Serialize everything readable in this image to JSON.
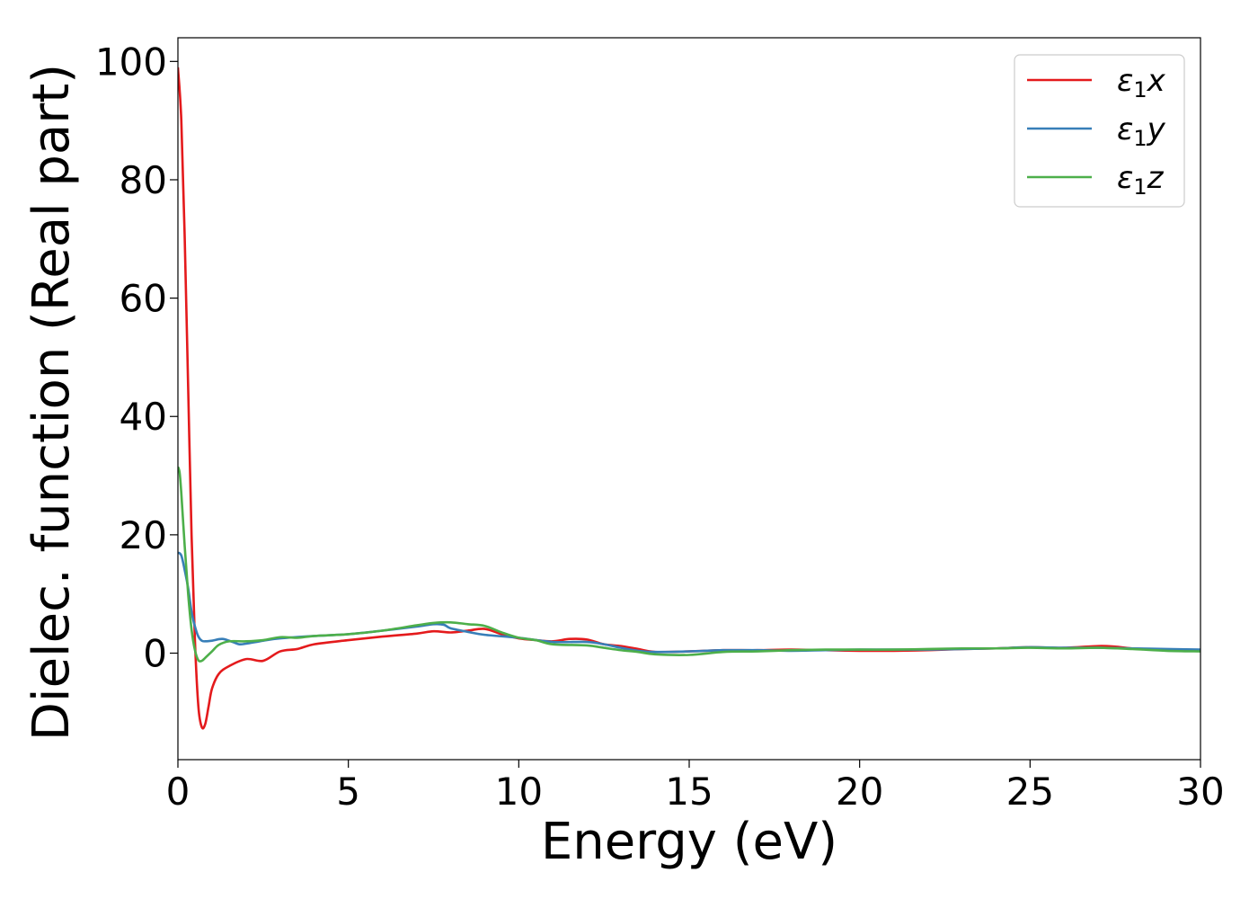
{
  "chart_data": {
    "type": "line",
    "xlabel": "Energy (eV)",
    "ylabel": "Dielec. function (Real part)",
    "xlim": [
      0,
      30
    ],
    "ylim": [
      -18,
      104
    ],
    "xticks": [
      0,
      5,
      10,
      15,
      20,
      25,
      30
    ],
    "xtick_labels": [
      "0",
      "5",
      "10",
      "15",
      "20",
      "25",
      "30"
    ],
    "yticks": [
      0,
      20,
      40,
      60,
      80,
      100
    ],
    "ytick_labels": [
      "0",
      "20",
      "40",
      "60",
      "80",
      "100"
    ],
    "grid": false,
    "legend_position": "top-right",
    "series": [
      {
        "name": "ε₁x",
        "legend": {
          "base": "ε",
          "sub": "1",
          "var": "x"
        },
        "color": "#e41a1c",
        "points": [
          [
            0.0,
            99
          ],
          [
            0.1,
            90
          ],
          [
            0.2,
            70
          ],
          [
            0.3,
            45
          ],
          [
            0.4,
            20
          ],
          [
            0.5,
            2
          ],
          [
            0.6,
            -9
          ],
          [
            0.7,
            -12.5
          ],
          [
            0.8,
            -12
          ],
          [
            0.9,
            -9
          ],
          [
            1.0,
            -6
          ],
          [
            1.2,
            -3.5
          ],
          [
            1.5,
            -2.2
          ],
          [
            2.0,
            -1
          ],
          [
            2.5,
            -1.3
          ],
          [
            3.0,
            0.3
          ],
          [
            3.5,
            0.7
          ],
          [
            4.0,
            1.5
          ],
          [
            5.0,
            2.2
          ],
          [
            6.0,
            2.8
          ],
          [
            7.0,
            3.3
          ],
          [
            7.5,
            3.7
          ],
          [
            8.0,
            3.5
          ],
          [
            8.5,
            3.8
          ],
          [
            9.0,
            4.1
          ],
          [
            9.5,
            3.2
          ],
          [
            10.0,
            2.5
          ],
          [
            10.5,
            2.2
          ],
          [
            11.0,
            2.0
          ],
          [
            11.5,
            2.4
          ],
          [
            12.0,
            2.3
          ],
          [
            12.5,
            1.5
          ],
          [
            13.0,
            1.2
          ],
          [
            13.5,
            0.7
          ],
          [
            14.0,
            0.2
          ],
          [
            15.0,
            0.3
          ],
          [
            16.0,
            0.5
          ],
          [
            17.0,
            0.5
          ],
          [
            18.0,
            0.6
          ],
          [
            19.0,
            0.5
          ],
          [
            20.0,
            0.4
          ],
          [
            21.0,
            0.4
          ],
          [
            22.0,
            0.5
          ],
          [
            23.0,
            0.7
          ],
          [
            24.0,
            0.8
          ],
          [
            25.0,
            1.0
          ],
          [
            26.0,
            0.9
          ],
          [
            27.0,
            1.2
          ],
          [
            27.5,
            1.1
          ],
          [
            28.0,
            0.8
          ],
          [
            29.0,
            0.6
          ],
          [
            30.0,
            0.5
          ]
        ]
      },
      {
        "name": "ε₁y",
        "legend": {
          "base": "ε",
          "sub": "1",
          "var": "y"
        },
        "color": "#377eb8",
        "points": [
          [
            0.0,
            17
          ],
          [
            0.1,
            16.5
          ],
          [
            0.2,
            14
          ],
          [
            0.3,
            11
          ],
          [
            0.4,
            7
          ],
          [
            0.5,
            4.5
          ],
          [
            0.6,
            2.8
          ],
          [
            0.7,
            2.1
          ],
          [
            0.8,
            2.0
          ],
          [
            1.0,
            2.1
          ],
          [
            1.3,
            2.4
          ],
          [
            1.6,
            1.9
          ],
          [
            1.8,
            1.5
          ],
          [
            2.0,
            1.6
          ],
          [
            2.5,
            2.1
          ],
          [
            3.0,
            2.5
          ],
          [
            4.0,
            2.9
          ],
          [
            5.0,
            3.2
          ],
          [
            6.0,
            3.8
          ],
          [
            7.0,
            4.5
          ],
          [
            7.5,
            4.9
          ],
          [
            7.8,
            4.8
          ],
          [
            8.0,
            4.2
          ],
          [
            8.5,
            3.6
          ],
          [
            9.0,
            3.1
          ],
          [
            10.0,
            2.6
          ],
          [
            11.0,
            1.9
          ],
          [
            12.0,
            1.9
          ],
          [
            12.5,
            1.5
          ],
          [
            13.0,
            0.9
          ],
          [
            13.5,
            0.4
          ],
          [
            14.0,
            0.2
          ],
          [
            15.0,
            0.3
          ],
          [
            16.0,
            0.5
          ],
          [
            17.0,
            0.5
          ],
          [
            18.0,
            0.4
          ],
          [
            19.0,
            0.5
          ],
          [
            20.0,
            0.6
          ],
          [
            21.0,
            0.6
          ],
          [
            22.0,
            0.6
          ],
          [
            23.0,
            0.7
          ],
          [
            24.0,
            0.8
          ],
          [
            25.0,
            1.0
          ],
          [
            26.0,
            0.9
          ],
          [
            27.0,
            0.9
          ],
          [
            28.0,
            0.8
          ],
          [
            29.0,
            0.7
          ],
          [
            30.0,
            0.6
          ]
        ]
      },
      {
        "name": "ε₁z",
        "legend": {
          "base": "ε",
          "sub": "1",
          "var": "z"
        },
        "color": "#4daf4a",
        "points": [
          [
            0.0,
            31.5
          ],
          [
            0.05,
            30.5
          ],
          [
            0.1,
            27
          ],
          [
            0.2,
            18
          ],
          [
            0.3,
            10
          ],
          [
            0.4,
            4
          ],
          [
            0.5,
            0.5
          ],
          [
            0.6,
            -1.2
          ],
          [
            0.7,
            -1.3
          ],
          [
            0.8,
            -0.8
          ],
          [
            1.0,
            0.3
          ],
          [
            1.2,
            1.4
          ],
          [
            1.5,
            2.0
          ],
          [
            2.0,
            2.0
          ],
          [
            2.5,
            2.2
          ],
          [
            3.0,
            2.7
          ],
          [
            3.5,
            2.6
          ],
          [
            4.0,
            2.9
          ],
          [
            5.0,
            3.2
          ],
          [
            6.0,
            3.8
          ],
          [
            7.0,
            4.7
          ],
          [
            7.5,
            5.1
          ],
          [
            8.0,
            5.2
          ],
          [
            8.5,
            4.9
          ],
          [
            9.0,
            4.6
          ],
          [
            9.5,
            3.5
          ],
          [
            10.0,
            2.6
          ],
          [
            10.5,
            2.2
          ],
          [
            11.0,
            1.5
          ],
          [
            12.0,
            1.3
          ],
          [
            12.5,
            0.9
          ],
          [
            13.0,
            0.5
          ],
          [
            13.5,
            0.2
          ],
          [
            14.0,
            -0.2
          ],
          [
            15.0,
            -0.3
          ],
          [
            16.0,
            0.2
          ],
          [
            17.0,
            0.3
          ],
          [
            18.0,
            0.5
          ],
          [
            19.0,
            0.6
          ],
          [
            20.0,
            0.6
          ],
          [
            21.0,
            0.6
          ],
          [
            22.0,
            0.7
          ],
          [
            23.0,
            0.8
          ],
          [
            24.0,
            0.8
          ],
          [
            25.0,
            0.9
          ],
          [
            26.0,
            0.8
          ],
          [
            27.0,
            0.9
          ],
          [
            28.0,
            0.7
          ],
          [
            29.0,
            0.4
          ],
          [
            30.0,
            0.3
          ]
        ]
      }
    ]
  }
}
